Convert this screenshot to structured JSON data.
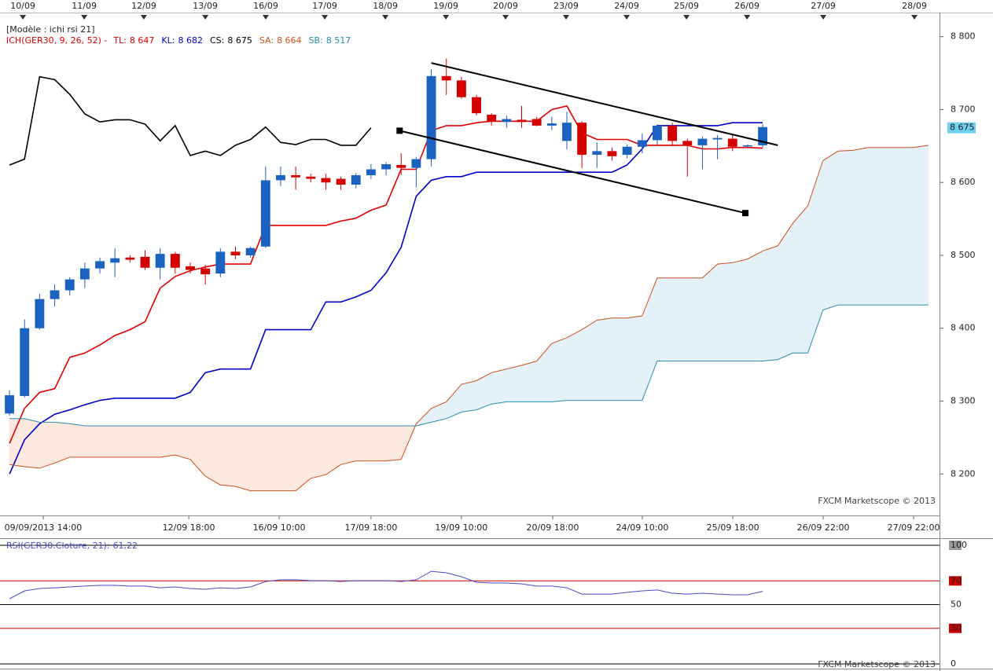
{
  "chart_data": [
    {
      "type": "candlestick",
      "title": "[Modèle : ichi rsi 21]",
      "indicator": "ICH(GER30, 9, 26, 52) -",
      "indicator_color": "#e00000",
      "watermark": "FXCM Marketscope © 2013",
      "categories": [
        null,
        null,
        null,
        null,
        null,
        null,
        null,
        null,
        null,
        null,
        null,
        null,
        null,
        null,
        null,
        null,
        null,
        null,
        null,
        null,
        null,
        null,
        null,
        null,
        null,
        null,
        null,
        null,
        null,
        null,
        null,
        null,
        null,
        null,
        null,
        null,
        null,
        null,
        null,
        null,
        null,
        null,
        null,
        null,
        null,
        null,
        null,
        null,
        null,
        null,
        null,
        null,
        null,
        null,
        null,
        null,
        null,
        null,
        null,
        null,
        null,
        null
      ],
      "open": [
        8283,
        8307,
        8400,
        8440,
        8452,
        8467,
        8482,
        8490,
        8497,
        8498,
        8483,
        8502,
        8485,
        8482,
        8475,
        8505,
        8500,
        8512,
        8603,
        8610,
        8608,
        8606,
        8605,
        8597,
        8610,
        8618,
        8624,
        8620,
        8632,
        8746,
        8740,
        8717,
        8693,
        8683,
        8686,
        8687,
        8678,
        8657,
        8682,
        8638,
        8643,
        8638,
        8649,
        8658,
        8678,
        8657,
        8651,
        8659,
        8660,
        8650,
        8651,
        null,
        null,
        null,
        null,
        null,
        null,
        null,
        null,
        null,
        null,
        null
      ],
      "high": [
        8315,
        8412,
        8447,
        8460,
        8470,
        8490,
        8497,
        8510,
        8500,
        8507,
        8510,
        8505,
        8490,
        8487,
        8510,
        8512,
        8512,
        8622,
        8622,
        8622,
        8612,
        8612,
        8608,
        8613,
        8625,
        8628,
        8640,
        8635,
        8755,
        8770,
        8745,
        8720,
        8695,
        8692,
        8705,
        8690,
        8690,
        8697,
        8684,
        8655,
        8648,
        8652,
        8667,
        8680,
        8682,
        8660,
        8663,
        8665,
        8665,
        8652,
        8680,
        null,
        null,
        null,
        null,
        null,
        null,
        null,
        null,
        null,
        null,
        null
      ],
      "low": [
        8280,
        8305,
        8398,
        8430,
        8445,
        8455,
        8475,
        8470,
        8490,
        8480,
        8467,
        8475,
        8475,
        8460,
        8470,
        8495,
        8497,
        8510,
        8595,
        8590,
        8600,
        8590,
        8590,
        8592,
        8605,
        8610,
        8610,
        8593,
        8622,
        8720,
        8715,
        8692,
        8678,
        8675,
        8675,
        8677,
        8672,
        8645,
        8620,
        8620,
        8630,
        8633,
        8640,
        8652,
        8650,
        8608,
        8618,
        8632,
        8643,
        8648,
        8648,
        null,
        null,
        null,
        null,
        null,
        null,
        null,
        null,
        null,
        null,
        null
      ],
      "close": [
        8308,
        8400,
        8440,
        8452,
        8467,
        8482,
        8492,
        8496,
        8494,
        8483,
        8502,
        8483,
        8480,
        8474,
        8505,
        8500,
        8510,
        8603,
        8610,
        8607,
        8605,
        8600,
        8597,
        8610,
        8618,
        8625,
        8620,
        8632,
        8746,
        8740,
        8717,
        8695,
        8684,
        8687,
        8683,
        8678,
        8681,
        8682,
        8638,
        8643,
        8636,
        8649,
        8658,
        8678,
        8657,
        8651,
        8660,
        8661,
        8649,
        8651,
        8676,
        null,
        null,
        null,
        null,
        null,
        null,
        null,
        null,
        null,
        null,
        null
      ],
      "up_color": "#1c62c0",
      "down_color": "#d40000",
      "series": [
        {
          "name": "TL:",
          "color": "#e00000",
          "legend_value": {
            "value": 8647,
            "label": "8 647"
          },
          "values": [
            8242,
            8290,
            8312,
            8317,
            8360,
            8366,
            8377,
            8390,
            8398,
            8409,
            8455,
            8471,
            8479,
            8484,
            8488,
            8488,
            8488,
            8541,
            8541,
            8541,
            8541,
            8541,
            8547,
            8551,
            8562,
            8569,
            8618,
            8618,
            8671,
            8678,
            8678,
            8682,
            8684,
            8684,
            8684,
            8684,
            8700,
            8705,
            8668,
            8659,
            8659,
            8659,
            8651,
            8651,
            8651,
            8651,
            8646,
            8646,
            8648,
            8648,
            8647,
            null,
            null,
            null,
            null,
            null,
            null,
            null,
            null,
            null,
            null,
            null
          ]
        },
        {
          "name": "KL:",
          "color": "#0000cc",
          "legend_value": {
            "value": 8682,
            "label": "8 682"
          },
          "values": [
            8200,
            8247,
            8269,
            8282,
            8288,
            8295,
            8301,
            8304,
            8304,
            8304,
            8304,
            8304,
            8312,
            8339,
            8344,
            8344,
            8344,
            8398,
            8398,
            8398,
            8398,
            8436,
            8436,
            8443,
            8452,
            8476,
            8511,
            8581,
            8603,
            8608,
            8608,
            8614,
            8614,
            8614,
            8614,
            8614,
            8614,
            8614,
            8614,
            8614,
            8614,
            8624,
            8646,
            8678,
            8678,
            8678,
            8678,
            8678,
            8682,
            8682,
            8682,
            null,
            null,
            null,
            null,
            null,
            null,
            null,
            null,
            null,
            null,
            null
          ]
        },
        {
          "name": "CS:",
          "color": "#000000",
          "legend_value": {
            "value": 8675,
            "label": "8 675"
          },
          "values": [
            8624,
            8632,
            8745,
            8741,
            8721,
            8694,
            8683,
            8686,
            8686,
            8680,
            8657,
            8678,
            8637,
            8643,
            8637,
            8651,
            8659,
            8676,
            8655,
            8652,
            8659,
            8659,
            8651,
            8651,
            8675,
            null,
            null,
            null,
            null,
            null,
            null,
            null,
            null,
            null,
            null,
            null,
            null,
            null,
            null,
            null,
            null,
            null,
            null,
            null,
            null,
            null,
            null,
            null,
            null,
            null,
            null,
            null,
            null,
            null,
            null,
            null,
            null,
            null,
            null,
            null,
            null,
            null
          ]
        },
        {
          "name": "SA:",
          "color": "#d0501c",
          "legend_value": {
            "value": 8664,
            "label": "8 664"
          },
          "values": [
            8213,
            8210,
            8208,
            8215,
            8223,
            8223,
            8223,
            8223,
            8223,
            8223,
            8223,
            8226,
            8220,
            8197,
            8185,
            8183,
            8177,
            8177,
            8177,
            8177,
            8194,
            8199,
            8213,
            8218,
            8218,
            8218,
            8220,
            8269,
            8290,
            8299,
            8323,
            8328,
            8339,
            8344,
            8349,
            8355,
            8379,
            8387,
            8398,
            8411,
            8414,
            8414,
            8417,
            8469,
            8469,
            8469,
            8469,
            8488,
            8490,
            8495,
            8506,
            8513,
            8544,
            8568,
            8630,
            8643,
            8644,
            8648,
            8648,
            8648,
            8648,
            8651
          ]
        },
        {
          "name": "SB:",
          "color": "#2a8db0",
          "legend_value": {
            "value": 8517,
            "label": "8 517"
          },
          "values": [
            8276,
            8276,
            8271,
            8271,
            8269,
            8266,
            8266,
            8266,
            8266,
            8266,
            8266,
            8266,
            8266,
            8266,
            8266,
            8266,
            8266,
            8266,
            8266,
            8266,
            8266,
            8266,
            8266,
            8266,
            8266,
            8266,
            8266,
            8266,
            8271,
            8276,
            8285,
            8288,
            8296,
            8299,
            8299,
            8299,
            8299,
            8301,
            8301,
            8301,
            8301,
            8301,
            8301,
            8355,
            8355,
            8355,
            8355,
            8355,
            8355,
            8355,
            8355,
            8357,
            8366,
            8366,
            8425,
            8432,
            8432,
            8432,
            8432,
            8432,
            8432,
            8432
          ]
        }
      ],
      "cloud_colors": {
        "up": "#e4f1f8",
        "down": "#fbe8df"
      },
      "trendline_color": "#000000",
      "trendlines": [
        {
          "x": [
            25.9,
            48.85
          ],
          "y": [
            8671,
            8558
          ],
          "markers": true
        },
        {
          "x": [
            28,
            51
          ],
          "y": [
            8764,
            8651
          ],
          "markers": false
        }
      ],
      "last_price": {
        "value": 8675,
        "label": "8 675"
      },
      "last_price_color": "#6fd0f0",
      "xlim": [
        -0.63,
        61.74
      ],
      "ylim": [
        8155,
        8818
      ],
      "yticks": [
        {
          "value": 8800,
          "label": "8 800"
        },
        {
          "value": 8700,
          "label": "8 700"
        },
        {
          "value": 8600,
          "label": "8 600"
        },
        {
          "value": 8500,
          "label": "8 500"
        },
        {
          "value": 8400,
          "label": "8 400"
        },
        {
          "value": 8300,
          "label": "8 300"
        },
        {
          "value": 8200,
          "label": "8 200"
        }
      ],
      "top_xticks": [
        {
          "value": 0.89,
          "label": "10/09"
        },
        {
          "value": 4.96,
          "label": "11/09"
        },
        {
          "value": 8.92,
          "label": "12/09"
        },
        {
          "value": 13.0,
          "label": "13/09"
        },
        {
          "value": 17.01,
          "label": "16/09"
        },
        {
          "value": 20.93,
          "label": "17/09"
        },
        {
          "value": 24.95,
          "label": "18/09"
        },
        {
          "value": 28.97,
          "label": "19/09"
        },
        {
          "value": 32.93,
          "label": "20/09"
        },
        {
          "value": 36.95,
          "label": "23/09"
        },
        {
          "value": 40.97,
          "label": "24/09"
        },
        {
          "value": 44.94,
          "label": "25/09"
        },
        {
          "value": 48.96,
          "label": "26/09"
        },
        {
          "value": 54.02,
          "label": "27/09"
        },
        {
          "value": 60.07,
          "label": "28/09"
        }
      ],
      "xticks": [
        {
          "value": 2.24,
          "label": "09/09/2013 14:00"
        },
        {
          "value": 11.9,
          "label": "12/09 18:00"
        },
        {
          "value": 17.9,
          "label": "16/09 10:00"
        },
        {
          "value": 24.0,
          "label": "17/09 18:00"
        },
        {
          "value": 30.0,
          "label": "19/09 10:00"
        },
        {
          "value": 36.06,
          "label": "20/09 18:00"
        },
        {
          "value": 42.01,
          "label": "24/09 10:00"
        },
        {
          "value": 48.02,
          "label": "25/09 18:00"
        },
        {
          "value": 54.02,
          "label": "26/09 22:00"
        },
        {
          "value": 60.02,
          "label": "27/09 22:00"
        }
      ]
    },
    {
      "type": "line",
      "title": "RSI(GER30.Cloture, 21):",
      "current": {
        "value": 61.22,
        "label": "61,22"
      },
      "watermark": "FXCM Marketscope © 2013",
      "categories": [
        null,
        null,
        null,
        null,
        null,
        null,
        null,
        null,
        null,
        null,
        null,
        null,
        null,
        null,
        null,
        null,
        null,
        null,
        null,
        null,
        null,
        null,
        null,
        null,
        null,
        null,
        null,
        null,
        null,
        null,
        null,
        null,
        null,
        null,
        null,
        null,
        null,
        null,
        null,
        null,
        null,
        null,
        null,
        null,
        null,
        null,
        null,
        null,
        null,
        null,
        null,
        null,
        null,
        null,
        null,
        null,
        null,
        null,
        null,
        null,
        null,
        null
      ],
      "series": [
        {
          "color": "#4a4ac8",
          "values": [
            55.0,
            61.6,
            63.6,
            64.2,
            64.9,
            65.6,
            66.2,
            66.2,
            65.6,
            65.6,
            64.2,
            64.9,
            63.6,
            62.9,
            64.2,
            63.6,
            64.9,
            69.5,
            70.9,
            70.9,
            70.2,
            70.2,
            69.5,
            70.2,
            70.2,
            70.2,
            69.5,
            70.9,
            78.1,
            76.8,
            73.5,
            68.9,
            68.2,
            68.2,
            67.5,
            65.6,
            65.6,
            64.2,
            58.9,
            58.9,
            58.9,
            60.3,
            61.6,
            62.3,
            59.6,
            58.9,
            59.6,
            58.9,
            58.3,
            58.3,
            61.2,
            null,
            null,
            null,
            null,
            null,
            null,
            null,
            null,
            null,
            null,
            null
          ]
        }
      ],
      "xlim": [
        -0.63,
        61.74
      ],
      "ylim": [
        0,
        100
      ],
      "yticks": [
        100,
        70,
        50,
        30,
        0
      ],
      "levels": [
        70,
        30
      ],
      "level_color": "#cc0000",
      "max_tick_color": "#9a9a9a"
    }
  ]
}
